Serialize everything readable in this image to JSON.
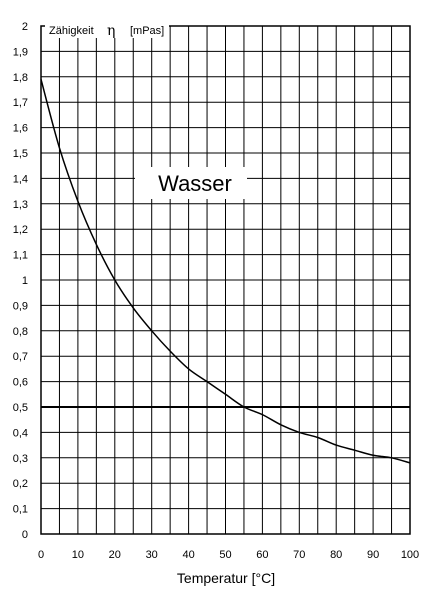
{
  "chart_data": {
    "type": "line",
    "ylabel_text": "Zähigkeit",
    "ylabel_symbol": "η",
    "ylabel_unit": "[mPas]",
    "xlabel": "Temperatur [°C]",
    "annotation": "Wasser",
    "xlim": [
      0,
      100
    ],
    "ylim": [
      0,
      2
    ],
    "grid": true,
    "x_minor_step": 5,
    "y_minor_step": 0.1,
    "x_ticks": [
      0,
      10,
      20,
      30,
      40,
      50,
      60,
      70,
      80,
      90,
      100
    ],
    "x_tick_labels": [
      "0",
      "10",
      "20",
      "30",
      "40",
      "50",
      "60",
      "70",
      "80",
      "90",
      "100"
    ],
    "y_ticks": [
      0,
      0.1,
      0.2,
      0.3,
      0.4,
      0.5,
      0.6,
      0.7,
      0.8,
      0.9,
      1,
      1.1,
      1.2,
      1.3,
      1.4,
      1.5,
      1.6,
      1.7,
      1.8,
      1.9,
      2
    ],
    "y_tick_labels": [
      "0",
      "0,1",
      "0,2",
      "0,3",
      "0,4",
      "0,5",
      "0,6",
      "0,7",
      "0,8",
      "0,9",
      "1",
      "1,1",
      "1,2",
      "1,3",
      "1,4",
      "1,5",
      "1,6",
      "1,7",
      "1,8",
      "1,9",
      "2"
    ],
    "reference_line": {
      "y": 0.5
    },
    "series": [
      {
        "x": [
          0,
          5,
          10,
          15,
          20,
          25,
          30,
          35,
          40,
          45,
          50,
          55,
          60,
          65,
          70,
          75,
          80,
          85,
          90,
          95,
          100
        ],
        "y": [
          1.79,
          1.52,
          1.31,
          1.14,
          1.0,
          0.89,
          0.8,
          0.72,
          0.65,
          0.6,
          0.55,
          0.5,
          0.47,
          0.43,
          0.4,
          0.38,
          0.35,
          0.33,
          0.31,
          0.3,
          0.28
        ]
      }
    ]
  }
}
